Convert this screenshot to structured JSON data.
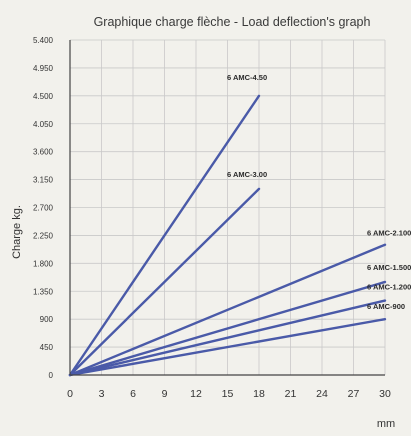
{
  "chart_data": {
    "type": "line",
    "title": "Graphique charge flèche - Load deflection's graph",
    "xlabel": "mm",
    "ylabel": "Charge kg.",
    "xlim": [
      0,
      30
    ],
    "ylim": [
      0,
      5400
    ],
    "x_ticks": [
      0,
      3,
      6,
      9,
      12,
      15,
      18,
      21,
      24,
      27,
      30
    ],
    "y_tick_labels": [
      "0",
      "450",
      "900",
      "1.350",
      "1.800",
      "2.250",
      "2.700",
      "3.150",
      "3.600",
      "4.050",
      "4.500",
      "4.950",
      "5.400"
    ],
    "y_ticks": [
      0,
      450,
      900,
      1350,
      1800,
      2250,
      2700,
      3150,
      3600,
      4050,
      4500,
      4950,
      5400
    ],
    "grid": true,
    "series": [
      {
        "name": "6 AMC-4.50",
        "x": [
          0,
          18
        ],
        "y": [
          0,
          4500
        ]
      },
      {
        "name": "6 AMC-3.00",
        "x": [
          0,
          18
        ],
        "y": [
          0,
          3000
        ]
      },
      {
        "name": "6 AMC-2.100",
        "x": [
          0,
          30
        ],
        "y": [
          0,
          2100
        ]
      },
      {
        "name": "6 AMC-1.500",
        "x": [
          0,
          30
        ],
        "y": [
          0,
          1500
        ]
      },
      {
        "name": "6 AMC-1.200",
        "x": [
          0,
          30
        ],
        "y": [
          0,
          1200
        ]
      },
      {
        "name": "6 AMC-900",
        "x": [
          0,
          30
        ],
        "y": [
          0,
          900
        ]
      }
    ]
  },
  "colors": {
    "line": "#4a5aa8",
    "background": "#f2f1ec",
    "grid": "#c9c9c9"
  }
}
